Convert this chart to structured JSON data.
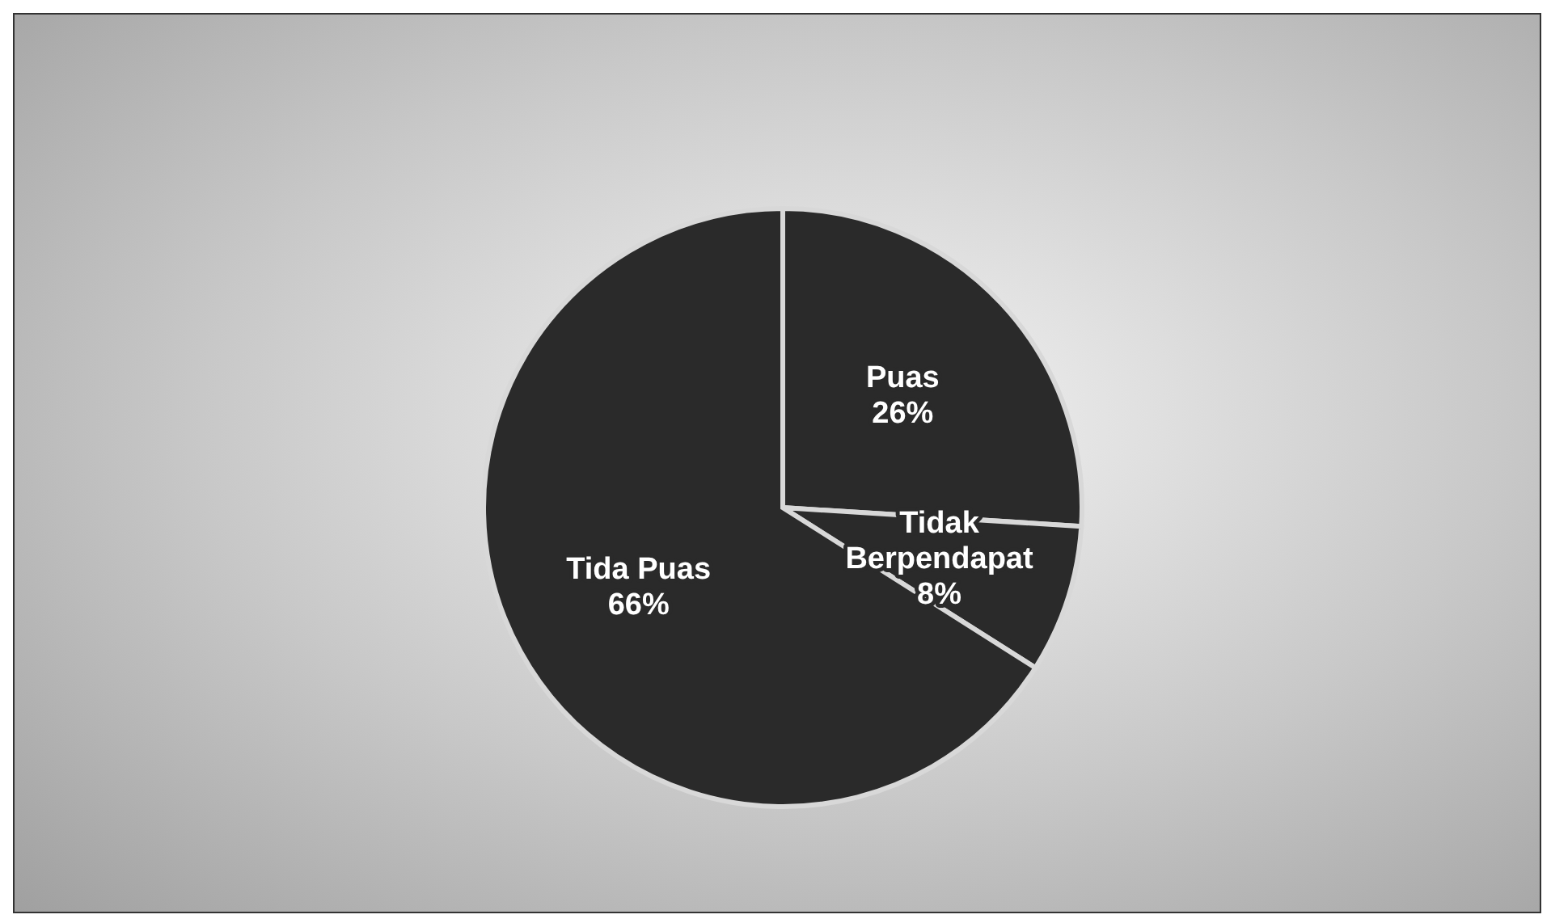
{
  "chart_data": {
    "type": "pie",
    "categories": [
      "Puas",
      "Tidak Berpendapat",
      "Tida Puas"
    ],
    "values": [
      26,
      8,
      66
    ],
    "colors": [
      "#2a2a2a",
      "#2a2a2a",
      "#2a2a2a"
    ],
    "value_labels": [
      "26%",
      "8%",
      "66%"
    ],
    "legend": false
  }
}
